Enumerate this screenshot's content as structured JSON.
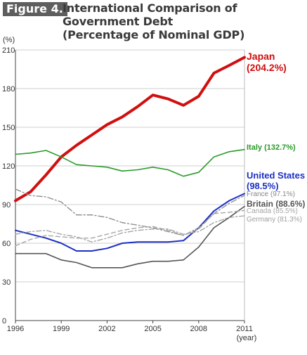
{
  "figure_label": "Figure 4.",
  "title_line1": "International Comparison of Government Debt",
  "title_line2": "(Percentage of Nominal GDP)",
  "chart_data": {
    "type": "line",
    "title": "International Comparison of Government Debt (Percentage of Nominal GDP)",
    "ylabel": "(%)",
    "xlabel": "(year)",
    "xlim": [
      1996,
      2011
    ],
    "ylim": [
      0,
      210
    ],
    "yticks": [
      0,
      30,
      60,
      90,
      120,
      150,
      180,
      210
    ],
    "xticks": [
      1996,
      1999,
      2002,
      2005,
      2008,
      2011
    ],
    "grid": "horizontal",
    "x": [
      1996,
      1997,
      1998,
      1999,
      2000,
      2001,
      2002,
      2003,
      2004,
      2005,
      2006,
      2007,
      2008,
      2009,
      2010,
      2011
    ],
    "series": [
      {
        "name": "Japan",
        "label": "Japan (204.2%)",
        "color": "#d10f0f",
        "width": 4,
        "dash": "",
        "values": [
          93,
          100,
          113,
          127,
          136,
          144,
          152,
          158,
          166,
          175,
          172,
          167,
          174,
          192,
          198,
          204.2
        ]
      },
      {
        "name": "Italy",
        "label": "Italy (132.7%)",
        "color": "#2a9a2a",
        "width": 1.6,
        "dash": "",
        "values": [
          129,
          130,
          132,
          127,
          121,
          120,
          119,
          116,
          117,
          119,
          117,
          112,
          115,
          127,
          131,
          132.7
        ]
      },
      {
        "name": "United States",
        "label": "United States (98.5%)",
        "color": "#1c2fc4",
        "width": 2,
        "dash": "",
        "values": [
          70,
          67,
          64,
          60,
          54,
          54,
          56,
          60,
          61,
          61,
          61,
          62,
          72,
          85,
          93,
          98.5
        ]
      },
      {
        "name": "France",
        "label": "France (97.1%)",
        "color": "#888888",
        "width": 1.3,
        "dash": "8,3,2,3",
        "values": [
          102,
          97,
          96,
          92,
          82,
          82,
          80,
          76,
          74,
          72,
          69,
          66,
          72,
          83,
          91,
          97.1
        ]
      },
      {
        "name": "Britain",
        "label": "Britain (88.6%)",
        "color": "#555555",
        "width": 1.6,
        "dash": "",
        "values": [
          52,
          52,
          52,
          47,
          45,
          41,
          41,
          41,
          44,
          46,
          46,
          47,
          57,
          72,
          80,
          88.6
        ]
      },
      {
        "name": "Canada",
        "label": "Canada (85.5%)",
        "color": "#a6a6a6",
        "width": 1.4,
        "dash": "6,4",
        "values": [
          58,
          63,
          66,
          65,
          64,
          64,
          67,
          70,
          72,
          73,
          70,
          66,
          71,
          83,
          84,
          85.5
        ]
      },
      {
        "name": "Germany",
        "label": "Germany (81.3%)",
        "color": "#a0a0a0",
        "width": 1.3,
        "dash": "7,3,2,3",
        "values": [
          67,
          69,
          70,
          67,
          65,
          61,
          64,
          68,
          70,
          71,
          71,
          67,
          69,
          76,
          80,
          81.3
        ]
      }
    ]
  }
}
